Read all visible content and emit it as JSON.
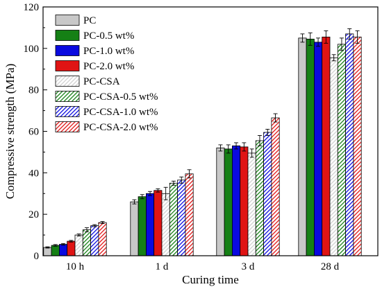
{
  "chart_data": {
    "type": "bar",
    "xlabel": "Curing time",
    "ylabel": "Compressive strength (MPa)",
    "ylim": [
      0,
      120
    ],
    "yticks": [
      0,
      20,
      40,
      60,
      80,
      100,
      120
    ],
    "categories": [
      "10 h",
      "1 d",
      "3 d",
      "28 d"
    ],
    "legend_position": "top-left",
    "series": [
      {
        "name": "PC",
        "color": "#c8c8c8",
        "pattern": "solid",
        "values": [
          4,
          26,
          52,
          105
        ],
        "errors": [
          0.3,
          1.0,
          1.5,
          2.0
        ]
      },
      {
        "name": "PC-0.5 wt%",
        "color": "#158015",
        "pattern": "solid",
        "values": [
          5,
          28.5,
          51.5,
          104.5
        ],
        "errors": [
          0.4,
          1.0,
          2.0,
          3.0
        ]
      },
      {
        "name": "PC-1.0 wt%",
        "color": "#0a0adf",
        "pattern": "solid",
        "values": [
          5.5,
          30,
          53,
          103
        ],
        "errors": [
          0.4,
          1.0,
          1.5,
          2.0
        ]
      },
      {
        "name": "PC-2.0 wt%",
        "color": "#e01414",
        "pattern": "solid",
        "values": [
          7,
          31.5,
          52.5,
          105.5
        ],
        "errors": [
          0.4,
          0.8,
          2.0,
          3.0
        ]
      },
      {
        "name": "PC-CSA",
        "color": "#d0d0d0",
        "pattern": "hatched",
        "values": [
          10,
          30,
          49.5,
          95.5
        ],
        "errors": [
          0.5,
          3.0,
          2.0,
          1.5
        ]
      },
      {
        "name": "PC-CSA-0.5 wt%",
        "color": "#158015",
        "pattern": "hatched",
        "values": [
          12.5,
          35,
          55.5,
          102
        ],
        "errors": [
          1.0,
          1.0,
          2.5,
          3.0
        ]
      },
      {
        "name": "PC-CSA-1.0 wt%",
        "color": "#0a0adf",
        "pattern": "hatched",
        "values": [
          14.5,
          36.5,
          59.5,
          107
        ],
        "errors": [
          0.5,
          1.5,
          1.5,
          2.5
        ]
      },
      {
        "name": "PC-CSA-2.0 wt%",
        "color": "#e01414",
        "pattern": "hatched",
        "values": [
          16,
          39.5,
          66.5,
          105.5
        ],
        "errors": [
          0.5,
          2.0,
          2.0,
          3.0
        ]
      }
    ]
  }
}
